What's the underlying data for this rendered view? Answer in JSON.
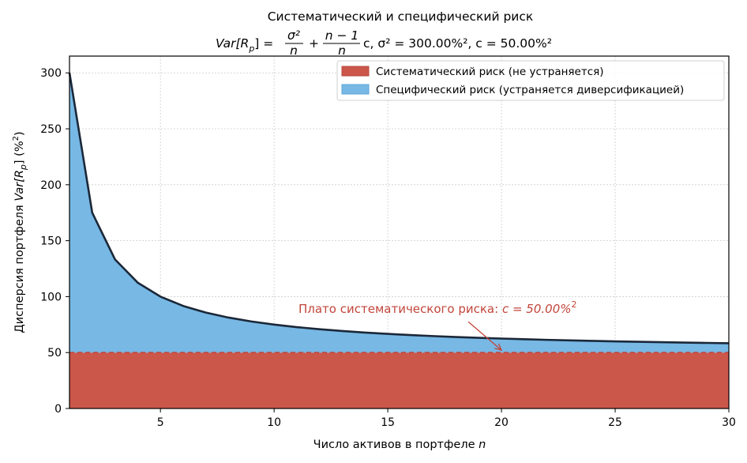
{
  "chart_data": {
    "type": "area",
    "title": "Систематический и специфический риск",
    "subtitle_formula": {
      "lhs": "Var[R",
      "lhs_sub": "p",
      "lhs_close": "] =",
      "frac1_num": "σ²",
      "frac1_den": "n",
      "plus": "+",
      "frac2_num": "n − 1",
      "frac2_den": "n",
      "tail": "c, σ² = 300.00%², c = 50.00%²"
    },
    "xlabel_text": "Число активов в портфеле ",
    "xlabel_var": "n",
    "ylabel_text": "Дисперсия портфеля ",
    "ylabel_var": "Var[R",
    "ylabel_var_sub": "p",
    "ylabel_close": "] (%",
    "ylabel_sup": "2",
    "ylabel_end": ")",
    "xlim": [
      1,
      30
    ],
    "ylim": [
      0,
      315
    ],
    "xticks": [
      5,
      10,
      15,
      20,
      25,
      30
    ],
    "yticks": [
      0,
      50,
      100,
      150,
      200,
      250,
      300
    ],
    "grid": true,
    "sigma2": 300,
    "c": 50,
    "x": [
      1,
      2,
      3,
      4,
      5,
      6,
      7,
      8,
      9,
      10,
      11,
      12,
      13,
      14,
      15,
      16,
      17,
      18,
      19,
      20,
      21,
      22,
      23,
      24,
      25,
      26,
      27,
      28,
      29,
      30
    ],
    "series": [
      {
        "name": "Систематический риск (не устраняется)",
        "color": "#cb574b",
        "values": [
          50,
          50,
          50,
          50,
          50,
          50,
          50,
          50,
          50,
          50,
          50,
          50,
          50,
          50,
          50,
          50,
          50,
          50,
          50,
          50,
          50,
          50,
          50,
          50,
          50,
          50,
          50,
          50,
          50,
          50
        ]
      },
      {
        "name": "Специфический риск (устраняется диверсификацией)",
        "color": "#77b8e5",
        "values": [
          300,
          175,
          133.33,
          112.5,
          100,
          91.67,
          85.71,
          81.25,
          77.78,
          75,
          72.73,
          70.83,
          69.23,
          67.86,
          66.67,
          65.63,
          64.71,
          63.89,
          63.16,
          62.5,
          61.9,
          61.36,
          60.87,
          60.42,
          60,
          59.62,
          59.26,
          58.93,
          58.62,
          58.33
        ]
      }
    ],
    "total_line_color": "#1b2838",
    "plateau_line_color": "#c2453a",
    "legend_position": "top-right",
    "annotation": {
      "text": "Плато систематического риска: ",
      "math": "c = 50.00%",
      "math_sup": "2",
      "color": "#c2453a",
      "arrow_to": [
        20,
        50
      ]
    }
  }
}
